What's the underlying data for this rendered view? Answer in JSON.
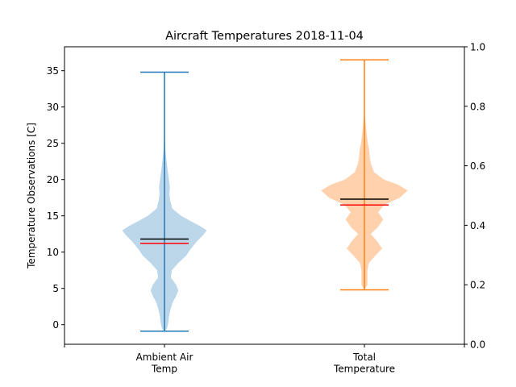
{
  "chart_data": {
    "type": "violin",
    "title": "Aircraft Temperatures 2018-11-04",
    "ylabel": "Temperature Observations [C]",
    "ylim": [
      -2.7,
      38.3
    ],
    "yticks": [
      0,
      5,
      10,
      15,
      20,
      25,
      30,
      35
    ],
    "right_axis": {
      "ylim": [
        0.0,
        1.0
      ],
      "ticks": [
        "0.0",
        "0.2",
        "0.4",
        "0.6",
        "0.8",
        "1.0"
      ]
    },
    "categories": [
      "Ambient Air\nTemp",
      "Total\nTemperature"
    ],
    "colors": {
      "series": [
        "#1f77b4",
        "#ff7f0e"
      ],
      "fill": [
        "#bcd6ea",
        "#ffd2ad"
      ],
      "mean": "#000000",
      "median": "#ff0000"
    },
    "series": [
      {
        "min": -0.9,
        "max": 34.8,
        "mean": 11.8,
        "median": 11.2,
        "density": [
          [
            -0.9,
            0.0
          ],
          [
            -0.5,
            0.05
          ],
          [
            0.0,
            0.07
          ],
          [
            1.0,
            0.09
          ],
          [
            2.0,
            0.12
          ],
          [
            3.0,
            0.16
          ],
          [
            4.0,
            0.24
          ],
          [
            4.7,
            0.28
          ],
          [
            5.5,
            0.24
          ],
          [
            6.5,
            0.13
          ],
          [
            7.5,
            0.15
          ],
          [
            8.5,
            0.28
          ],
          [
            9.5,
            0.44
          ],
          [
            10.5,
            0.54
          ],
          [
            11.5,
            0.66
          ],
          [
            12.3,
            0.78
          ],
          [
            13.0,
            0.86
          ],
          [
            13.6,
            0.72
          ],
          [
            14.2,
            0.55
          ],
          [
            15.0,
            0.34
          ],
          [
            16.0,
            0.16
          ],
          [
            17.0,
            0.12
          ],
          [
            18.0,
            0.1
          ],
          [
            19.0,
            0.11
          ],
          [
            20.0,
            0.09
          ],
          [
            21.0,
            0.07
          ],
          [
            22.0,
            0.05
          ],
          [
            23.0,
            0.035
          ],
          [
            24.0,
            0.02
          ],
          [
            25.0,
            0.012
          ],
          [
            26.0,
            0.006
          ],
          [
            28.0,
            0.002
          ],
          [
            34.8,
            0.0
          ]
        ]
      },
      {
        "min": 4.8,
        "max": 36.5,
        "mean": 17.3,
        "median": 16.5,
        "density": [
          [
            4.8,
            0.0
          ],
          [
            5.5,
            0.06
          ],
          [
            6.5,
            0.06
          ],
          [
            7.5,
            0.06
          ],
          [
            8.5,
            0.09
          ],
          [
            9.5,
            0.22
          ],
          [
            10.5,
            0.36
          ],
          [
            11.5,
            0.26
          ],
          [
            12.5,
            0.13
          ],
          [
            13.5,
            0.28
          ],
          [
            14.5,
            0.38
          ],
          [
            15.5,
            0.28
          ],
          [
            16.5,
            0.4
          ],
          [
            17.5,
            0.72
          ],
          [
            18.5,
            0.88
          ],
          [
            19.3,
            0.68
          ],
          [
            20.0,
            0.4
          ],
          [
            21.0,
            0.2
          ],
          [
            22.0,
            0.14
          ],
          [
            23.0,
            0.11
          ],
          [
            24.0,
            0.1
          ],
          [
            25.0,
            0.07
          ],
          [
            26.0,
            0.05
          ],
          [
            27.0,
            0.035
          ],
          [
            28.0,
            0.02
          ],
          [
            29.0,
            0.01
          ],
          [
            30.0,
            0.004
          ],
          [
            36.5,
            0.0
          ]
        ]
      }
    ]
  }
}
